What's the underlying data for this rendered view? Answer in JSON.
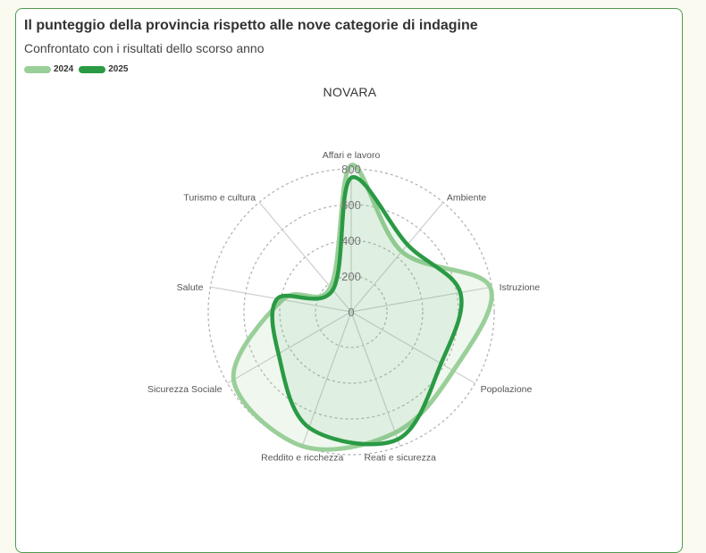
{
  "header": {
    "title": "Il punteggio della provincia rispetto alle nove categorie di indagine",
    "subtitle": "Confrontato con i risultati dello scorso anno"
  },
  "legend": [
    {
      "label": "2024",
      "color": "#99cf99"
    },
    {
      "label": "2025",
      "color": "#2a9a44"
    }
  ],
  "chart_data": {
    "type": "radar",
    "title": "NOVARA",
    "categories": [
      "Affari e lavoro",
      "Ambiente",
      "Istruzione",
      "Popolazione",
      "Reati e sicurezza",
      "Reddito e ricchezza",
      "Sicurezza Sociale",
      "Salute",
      "Turismo e cultura"
    ],
    "ticks": [
      0,
      200,
      400,
      600,
      800
    ],
    "rmax": 800,
    "series": [
      {
        "name": "2024",
        "values": [
          820,
          440,
          790,
          660,
          720,
          800,
          760,
          390,
          180
        ],
        "color": "#99cf99"
      },
      {
        "name": "2025",
        "values": [
          750,
          490,
          620,
          580,
          760,
          690,
          470,
          420,
          160
        ],
        "color": "#2a9a44"
      }
    ]
  }
}
